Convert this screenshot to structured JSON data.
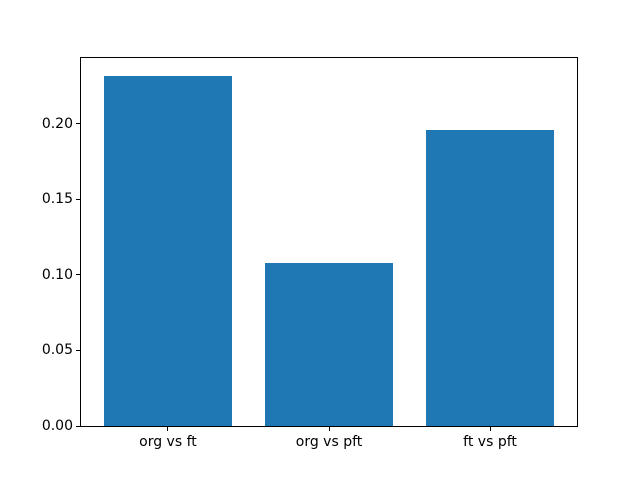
{
  "figure": {
    "background_color": "#ffffff"
  },
  "chart_data": {
    "type": "bar",
    "title": "",
    "xlabel": "",
    "ylabel": "",
    "categories": [
      "org vs ft",
      "org vs pft",
      "ft vs pft"
    ],
    "values": [
      0.232,
      0.108,
      0.196
    ],
    "bar_color": "#1f77b4",
    "spine_color": "#000000",
    "tick_color": "#000000",
    "ylim": [
      0,
      0.2436
    ],
    "ytick_values": [
      0.0,
      0.05,
      0.1,
      0.15,
      0.2
    ],
    "ytick_labels": [
      "0.00",
      "0.05",
      "0.10",
      "0.15",
      "0.20"
    ],
    "grid": false,
    "legend": false
  }
}
